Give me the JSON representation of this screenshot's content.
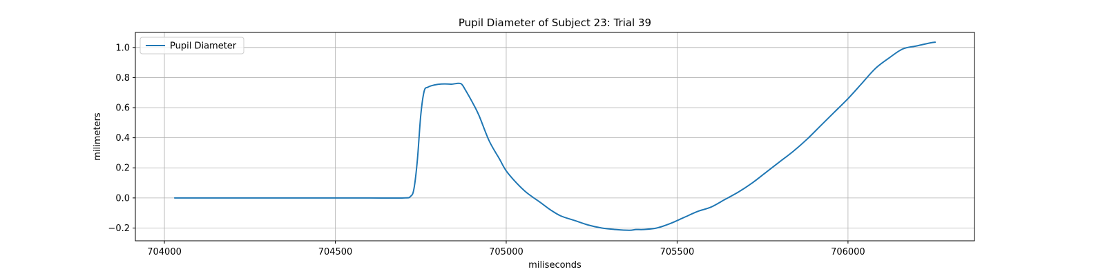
{
  "chart_data": {
    "type": "line",
    "title": "Pupil Diameter of Subject 23: Trial 39",
    "xlabel": "miliseconds",
    "ylabel": "milimeters",
    "xlim": [
      703915,
      706370
    ],
    "ylim": [
      -0.285,
      1.1
    ],
    "xticks": [
      704000,
      704500,
      705000,
      705500,
      706000
    ],
    "yticks": [
      -0.2,
      0.0,
      0.2,
      0.4,
      0.6,
      0.8,
      1.0
    ],
    "xtick_labels": [
      "704000",
      "704500",
      "705000",
      "705500",
      "706000"
    ],
    "ytick_labels": [
      "−0.2",
      "0.0",
      "0.2",
      "0.4",
      "0.6",
      "0.8",
      "1.0"
    ],
    "grid": true,
    "legend_position": "upper-left",
    "series": [
      {
        "name": "Pupil Diameter",
        "color": "#1f77b4",
        "x": [
          704030,
          704100,
          704200,
          704300,
          704400,
          704500,
          704600,
          704700,
          704720,
          704730,
          704740,
          704750,
          704760,
          704770,
          704780,
          704800,
          704820,
          704840,
          704860,
          704870,
          704880,
          704900,
          704920,
          704950,
          704980,
          705000,
          705030,
          705060,
          705100,
          705130,
          705160,
          705200,
          705240,
          705280,
          705320,
          705360,
          705380,
          705400,
          705440,
          705480,
          705520,
          705560,
          705600,
          705640,
          705680,
          705720,
          705760,
          705800,
          705840,
          705880,
          705920,
          705960,
          706000,
          706040,
          706080,
          706120,
          706160,
          706200,
          706240,
          706255
        ],
        "y": [
          0.0,
          0.0,
          0.0,
          0.0,
          0.0,
          0.0,
          0.0,
          0.0,
          0.01,
          0.06,
          0.25,
          0.55,
          0.71,
          0.735,
          0.745,
          0.755,
          0.758,
          0.756,
          0.762,
          0.755,
          0.72,
          0.64,
          0.55,
          0.38,
          0.26,
          0.18,
          0.1,
          0.035,
          -0.03,
          -0.08,
          -0.12,
          -0.15,
          -0.18,
          -0.2,
          -0.21,
          -0.215,
          -0.21,
          -0.21,
          -0.2,
          -0.17,
          -0.13,
          -0.09,
          -0.06,
          -0.01,
          0.04,
          0.1,
          0.17,
          0.24,
          0.31,
          0.39,
          0.48,
          0.57,
          0.66,
          0.76,
          0.86,
          0.93,
          0.99,
          1.01,
          1.03,
          1.035
        ]
      }
    ]
  }
}
